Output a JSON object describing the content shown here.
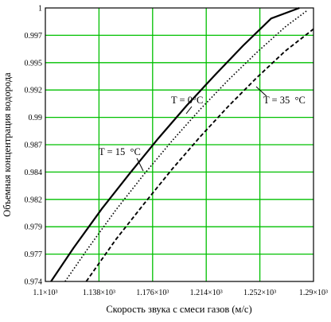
{
  "chart_data": {
    "type": "line",
    "xlabel": "Скорость звука с смеси газов (м/с)",
    "ylabel": "Объемная концентрация водорода",
    "xlim": [
      1100,
      1290
    ],
    "ylim": [
      0.974,
      1.0
    ],
    "x_ticks": [
      "1.1×10³",
      "1.138×10³",
      "1.176×10³",
      "1.214×10³",
      "1.252×10³",
      "1.29×10³"
    ],
    "y_ticks": [
      "0.974",
      "0.977",
      "0.979",
      "0.982",
      "0.984",
      "0.987",
      "0.99",
      "0.992",
      "0.995",
      "0.997",
      "1"
    ],
    "grid": true,
    "grid_color": "#00c000",
    "series": [
      {
        "name": "T = 0°C",
        "style": "solid",
        "x": [
          1104,
          1120,
          1140,
          1160,
          1180,
          1200,
          1220,
          1240,
          1260,
          1280
        ],
        "y": [
          0.974,
          0.9772,
          0.9809,
          0.9843,
          0.9876,
          0.9907,
          0.9936,
          0.9964,
          0.999,
          1.0
        ]
      },
      {
        "name": "T = 15 °C",
        "style": "dotted",
        "x": [
          1114,
          1130,
          1150,
          1170,
          1190,
          1210,
          1230,
          1250,
          1270,
          1286
        ],
        "y": [
          0.974,
          0.9771,
          0.9808,
          0.9842,
          0.9874,
          0.9904,
          0.9932,
          0.9958,
          0.9982,
          0.9998
        ]
      },
      {
        "name": "T = 35 °C",
        "style": "dashed",
        "x": [
          1129,
          1150,
          1170,
          1190,
          1210,
          1230,
          1250,
          1270,
          1290
        ],
        "y": [
          0.974,
          0.978,
          0.9814,
          0.9847,
          0.9878,
          0.9907,
          0.9934,
          0.9959,
          0.998
        ]
      }
    ],
    "annotations": [
      {
        "text": "T = 0°C",
        "x": 1215,
        "y": 0.9905
      },
      {
        "text": "T = 15  °C",
        "x": 1129,
        "y": 0.9849
      },
      {
        "text": "T = 35  °C",
        "x": 1260,
        "y": 0.9895
      }
    ]
  }
}
